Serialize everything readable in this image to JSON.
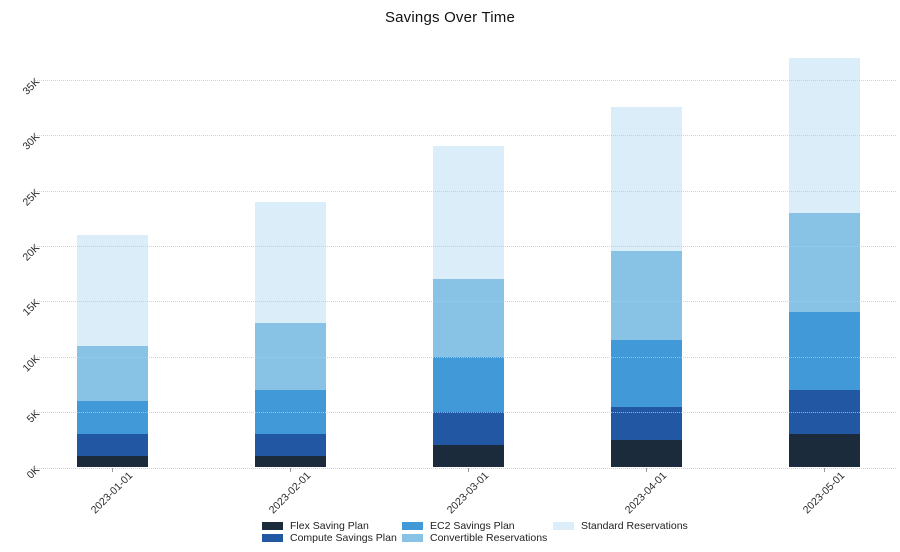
{
  "title": "Savings Over Time",
  "chart_data": {
    "type": "bar",
    "stacked": true,
    "title": "Savings Over Time",
    "xlabel": "",
    "ylabel": "",
    "categories": [
      "2023-01-01",
      "2023-02-01",
      "2023-03-01",
      "2023-04-01",
      "2023-05-01"
    ],
    "series": [
      {
        "name": "Flex Saving Plan",
        "color": "#1c2b3c",
        "values": [
          1000,
          1000,
          2000,
          2500,
          3000
        ]
      },
      {
        "name": "Compute Savings Plan",
        "color": "#2257a4",
        "values": [
          2000,
          2000,
          3000,
          3000,
          4000
        ]
      },
      {
        "name": "EC2 Savings Plan",
        "color": "#4299d8",
        "values": [
          3000,
          4000,
          5000,
          6000,
          7000
        ]
      },
      {
        "name": "Convertible Reservations",
        "color": "#88c2e5",
        "values": [
          5000,
          6000,
          7000,
          8000,
          9000
        ]
      },
      {
        "name": "Standard Reservations",
        "color": "#dcedfa",
        "values": [
          10000,
          11000,
          12000,
          13000,
          14000
        ]
      }
    ],
    "totals": [
      21000,
      24000,
      29000,
      32500,
      37000
    ],
    "y_ticks": [
      "0K",
      "5K",
      "10K",
      "15K",
      "20K",
      "25K",
      "30K",
      "35K"
    ],
    "ylim": [
      0,
      38500
    ],
    "grid": "horizontal-dotted-over-bars",
    "legend_position": "bottom"
  }
}
